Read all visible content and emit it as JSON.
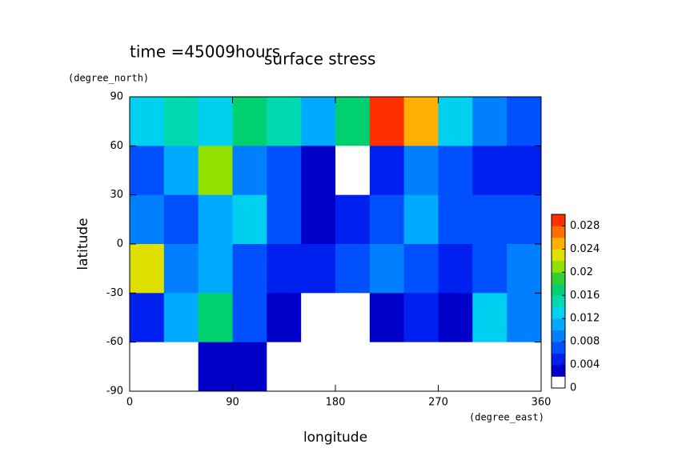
{
  "chart_data": {
    "type": "contour",
    "title": "surface stress",
    "subtitle": "time =45009hours",
    "x_label": "longitude",
    "x_units": "(degree_east)",
    "y_label": "latitude",
    "y_units": "(degree_north)",
    "x": [
      15,
      45,
      75,
      105,
      135,
      165,
      195,
      225,
      255,
      285,
      315,
      345
    ],
    "y": [
      75,
      45,
      15,
      -15,
      -45,
      -75
    ],
    "z": [
      [
        0.012,
        0.014,
        0.012,
        0.016,
        0.014,
        0.01,
        0.016,
        0.03,
        0.024,
        0.012,
        0.008,
        0.006
      ],
      [
        0.006,
        0.01,
        0.02,
        0.008,
        0.006,
        0.002,
        0.001,
        0.004,
        0.008,
        0.006,
        0.004,
        0.004
      ],
      [
        0.008,
        0.006,
        0.01,
        0.012,
        0.006,
        0.002,
        0.004,
        0.006,
        0.01,
        0.006,
        0.006,
        0.006
      ],
      [
        0.022,
        0.008,
        0.01,
        0.006,
        0.004,
        0.004,
        0.006,
        0.008,
        0.006,
        0.004,
        0.006,
        0.008
      ],
      [
        0.004,
        0.01,
        0.016,
        0.006,
        0.002,
        0.001,
        0.001,
        0.002,
        0.004,
        0.002,
        0.012,
        0.008
      ],
      [
        0.001,
        0.001,
        0.002,
        0.002,
        0.001,
        0.001,
        0.001,
        0.001,
        0.001,
        0.001,
        0.001,
        0.001
      ]
    ],
    "xlim": [
      0,
      360
    ],
    "xticks": [
      0,
      90,
      180,
      270,
      360
    ],
    "ylim": [
      -90,
      90
    ],
    "yticks": [
      -90,
      -60,
      -30,
      0,
      30,
      60,
      90
    ],
    "clim": [
      0,
      0.03
    ],
    "cticks": [
      0,
      0.004,
      0.008,
      0.012,
      0.016,
      0.02,
      0.024,
      0.028
    ],
    "colormap": [
      "#ffffff",
      "#0000c8",
      "#0020f0",
      "#0050ff",
      "#0080ff",
      "#00aaff",
      "#00d0f0",
      "#00d8b0",
      "#00d070",
      "#30d030",
      "#90e000",
      "#e0e000",
      "#ffb000",
      "#ff7000",
      "#ff3000"
    ]
  }
}
